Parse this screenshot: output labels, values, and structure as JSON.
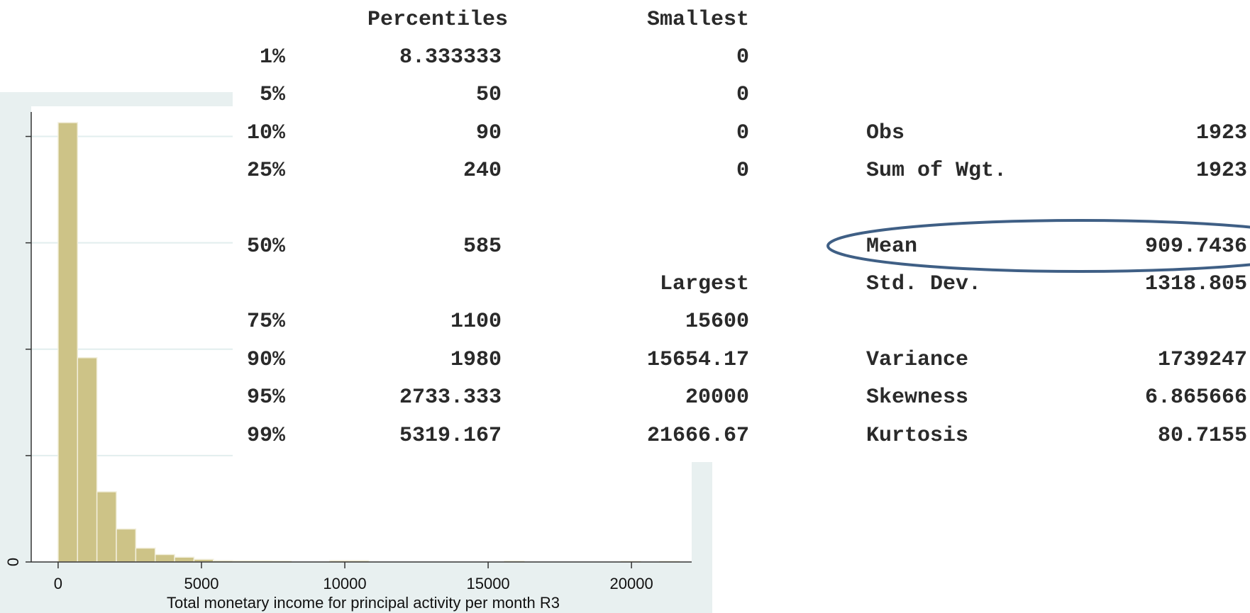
{
  "chart_data": {
    "type": "histogram",
    "xlabel": "Total monetary income for principal activity per month R3",
    "bins": [
      0,
      677.08,
      1354.17,
      2031.25,
      2708.33,
      3385.42,
      4062.5,
      4739.58,
      5416.67,
      6093.75,
      6770.83,
      7447.92,
      8125,
      8802.08,
      9479.17,
      10156.25,
      10833.33,
      11510.42,
      12187.5,
      12864.58,
      13541.67,
      14218.75,
      14895.83,
      15572.92,
      16250,
      16927.08,
      17604.17,
      18281.25,
      18958.33,
      19635.42,
      20312.5,
      20989.58,
      21666.67
    ],
    "values": [
      4.13,
      1.92,
      0.66,
      0.31,
      0.13,
      0.07,
      0.045,
      0.025,
      0.012,
      0.01,
      0.01,
      0.008,
      0,
      0,
      0.012,
      0.012,
      0,
      0,
      0,
      0,
      0,
      0,
      0,
      0.008,
      0,
      0,
      0,
      0,
      0,
      0.006,
      0,
      0.006
    ],
    "color": "#cdc387",
    "xlim": [
      -790,
      22100
    ],
    "xticks": [
      0,
      5000,
      10000,
      15000,
      20000
    ],
    "ylim": [
      0,
      4.23
    ],
    "yticks": [
      0
    ],
    "ytick_marks": [
      1,
      2,
      3,
      4
    ],
    "grid": true
  },
  "summary": {
    "percentiles_header": "Percentiles",
    "smallest_header": "Smallest",
    "largest_header": "Largest",
    "low_rows": [
      {
        "pct": "1%",
        "value": "8.333333",
        "smallest": "0"
      },
      {
        "pct": "5%",
        "value": "50",
        "smallest": "0"
      },
      {
        "pct": "10%",
        "value": "90",
        "smallest": "0"
      },
      {
        "pct": "25%",
        "value": "240",
        "smallest": "0"
      }
    ],
    "median": {
      "pct": "50%",
      "value": "585"
    },
    "high_rows": [
      {
        "pct": "75%",
        "value": "1100",
        "largest": "15600"
      },
      {
        "pct": "90%",
        "value": "1980",
        "largest": "15654.17"
      },
      {
        "pct": "95%",
        "value": "2733.333",
        "largest": "20000"
      },
      {
        "pct": "99%",
        "value": "5319.167",
        "largest": "21666.67"
      }
    ],
    "stats": [
      {
        "name": "Obs",
        "value": "1923"
      },
      {
        "name": "Sum of Wgt.",
        "value": "1923"
      },
      {
        "name": "Mean",
        "value": "909.7436"
      },
      {
        "name": "Std. Dev.",
        "value": "1318.805"
      },
      {
        "name": "Variance",
        "value": "1739247"
      },
      {
        "name": "Skewness",
        "value": "6.865666"
      },
      {
        "name": "Kurtosis",
        "value": "80.7155"
      }
    ]
  }
}
